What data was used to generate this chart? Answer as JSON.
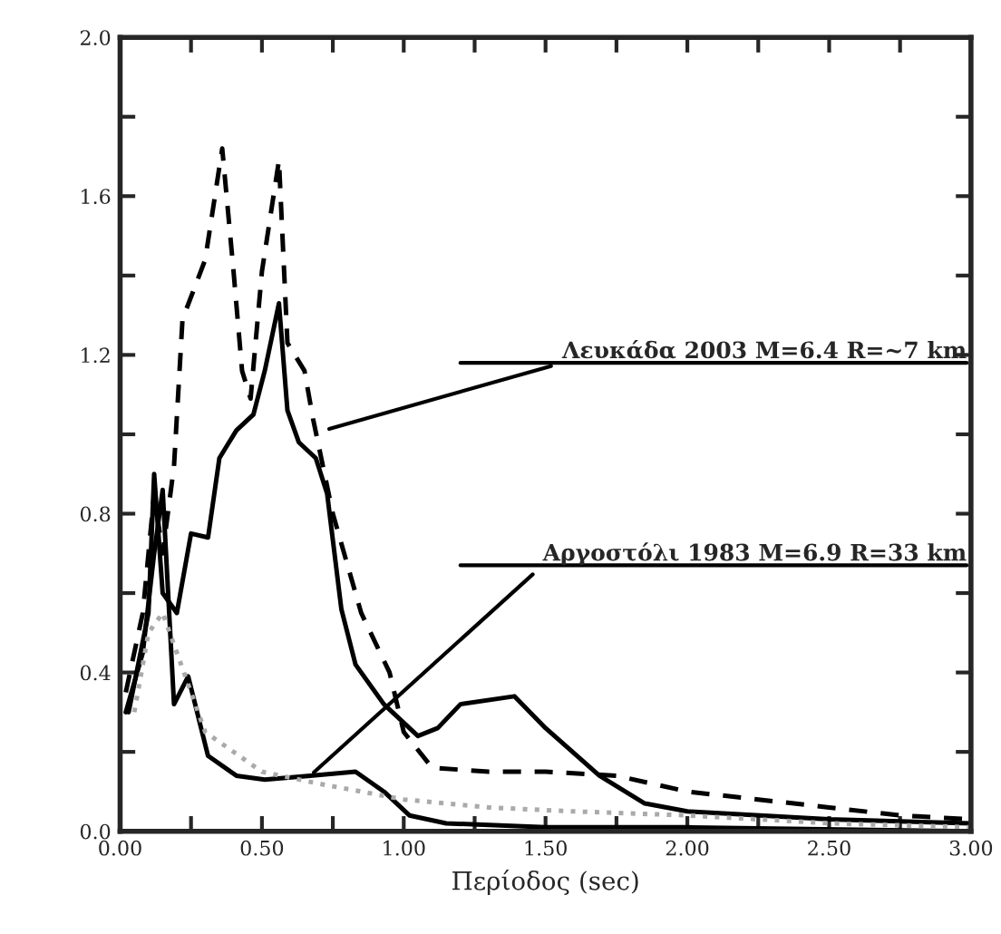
{
  "chart_data": {
    "type": "line",
    "xlabel": "Περίοδος (sec)",
    "xlim": [
      0,
      3
    ],
    "ylim": [
      0,
      2
    ],
    "xticks": [
      {
        "value": 0,
        "label": "0.00"
      },
      {
        "value": 0.25,
        "label": null
      },
      {
        "value": 0.5,
        "label": "0.50"
      },
      {
        "value": 0.75,
        "label": null
      },
      {
        "value": 1.0,
        "label": "1.00"
      },
      {
        "value": 1.25,
        "label": null
      },
      {
        "value": 1.5,
        "label": "1.50"
      },
      {
        "value": 1.75,
        "label": null
      },
      {
        "value": 2.0,
        "label": "2.00"
      },
      {
        "value": 2.25,
        "label": null
      },
      {
        "value": 2.5,
        "label": "2.50"
      },
      {
        "value": 2.75,
        "label": null
      },
      {
        "value": 3.0,
        "label": "3.00"
      }
    ],
    "yticks": [
      {
        "value": 0,
        "label": "0.0"
      },
      {
        "value": 0.2,
        "label": null
      },
      {
        "value": 0.4,
        "label": "0.4"
      },
      {
        "value": 0.6,
        "label": null
      },
      {
        "value": 0.8,
        "label": "0.8"
      },
      {
        "value": 1.0,
        "label": null
      },
      {
        "value": 1.2,
        "label": "1.2"
      },
      {
        "value": 1.4,
        "label": null
      },
      {
        "value": 1.6,
        "label": "1.6"
      },
      {
        "value": 1.8,
        "label": null
      },
      {
        "value": 2.0,
        "label": "2.0"
      }
    ],
    "grid": false,
    "marker": "none",
    "series": [
      {
        "color": "#000000",
        "line_style": "dashed",
        "x": [
          0.02,
          0.08,
          0.12,
          0.15,
          0.19,
          0.22,
          0.3,
          0.36,
          0.4,
          0.43,
          0.46,
          0.5,
          0.56,
          0.59,
          0.65,
          0.68,
          0.75,
          0.85,
          0.95,
          1.0,
          1.1,
          1.3,
          1.5,
          1.75,
          2.0,
          2.25,
          2.5,
          2.75,
          3.0
        ],
        "values": [
          0.35,
          0.55,
          0.85,
          0.7,
          0.92,
          1.29,
          1.44,
          1.72,
          1.41,
          1.16,
          1.09,
          1.41,
          1.69,
          1.23,
          1.16,
          1.04,
          0.8,
          0.55,
          0.4,
          0.25,
          0.16,
          0.15,
          0.15,
          0.14,
          0.1,
          0.08,
          0.06,
          0.04,
          0.03
        ]
      },
      {
        "color": "#000000",
        "line_style": "solid",
        "x": [
          0.03,
          0.1,
          0.12,
          0.15,
          0.2,
          0.25,
          0.31,
          0.35,
          0.41,
          0.47,
          0.51,
          0.56,
          0.59,
          0.63,
          0.69,
          0.73,
          0.78,
          0.83,
          0.93,
          1.05,
          1.12,
          1.2,
          1.39,
          1.5,
          1.69,
          1.85,
          2.0,
          2.5,
          3.0
        ],
        "values": [
          0.3,
          0.55,
          0.9,
          0.6,
          0.55,
          0.75,
          0.74,
          0.94,
          1.01,
          1.05,
          1.16,
          1.33,
          1.06,
          0.98,
          0.94,
          0.85,
          0.56,
          0.42,
          0.32,
          0.24,
          0.26,
          0.32,
          0.34,
          0.26,
          0.14,
          0.07,
          0.05,
          0.03,
          0.02
        ]
      },
      {
        "color": "#000000",
        "line_style": "solid",
        "x": [
          0.02,
          0.08,
          0.12,
          0.15,
          0.19,
          0.24,
          0.31,
          0.41,
          0.51,
          0.67,
          0.83,
          0.93,
          1.02,
          1.15,
          1.5,
          2.0,
          3.0
        ],
        "values": [
          0.3,
          0.45,
          0.7,
          0.86,
          0.32,
          0.39,
          0.19,
          0.14,
          0.13,
          0.14,
          0.15,
          0.1,
          0.04,
          0.02,
          0.01,
          0.01,
          0.0
        ]
      },
      {
        "color": "#aaaaaa",
        "line_style": "dotted",
        "x": [
          0.05,
          0.1,
          0.15,
          0.2,
          0.3,
          0.5,
          0.7,
          1.0,
          1.3,
          1.6,
          2.0,
          2.5,
          3.0
        ],
        "values": [
          0.3,
          0.5,
          0.55,
          0.45,
          0.25,
          0.15,
          0.12,
          0.08,
          0.06,
          0.05,
          0.04,
          0.02,
          0.01
        ]
      }
    ],
    "annotations": [
      {
        "text": "Λευκάδα 2003 M=6.4 R=~7 km",
        "x": 0.72,
        "y": 1.01
      },
      {
        "text": "Αργοστόλι 1983 M=6.9 R=33 km",
        "x": 0.67,
        "y": 0.14
      }
    ]
  }
}
